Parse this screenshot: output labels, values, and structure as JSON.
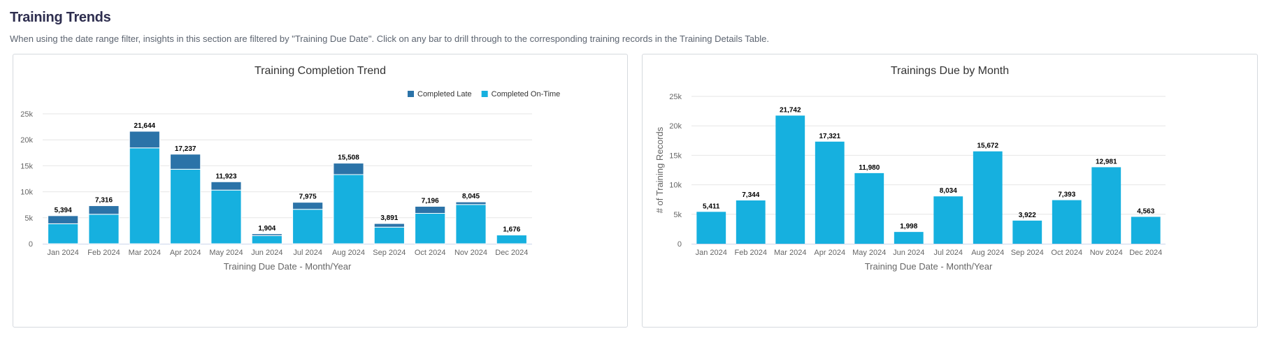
{
  "section": {
    "title": "Training Trends",
    "description": "When using the date range filter, insights in this section are filtered by \"Training Due Date\". Click on any bar to drill through to the corresponding training records in the Training Details Table."
  },
  "colors": {
    "completed_late": "#2b73a8",
    "completed_on_time": "#16b0df",
    "trainings_due": "#16b0df"
  },
  "chart_data": [
    {
      "type": "bar",
      "stacked": true,
      "title": "Training Completion Trend",
      "xlabel": "Training Due Date - Month/Year",
      "ylabel": "",
      "ylim": [
        0,
        25000
      ],
      "yticks": [
        0,
        5000,
        10000,
        15000,
        20000,
        25000
      ],
      "ytick_labels": [
        "0",
        "5k",
        "10k",
        "15k",
        "20k",
        "25k"
      ],
      "grid": true,
      "legend_position": "top-right",
      "categories": [
        "Jan 2024",
        "Feb 2024",
        "Mar 2024",
        "Apr 2024",
        "May 2024",
        "Jun 2024",
        "Jul 2024",
        "Aug 2024",
        "Sep 2024",
        "Oct 2024",
        "Nov 2024",
        "Dec 2024"
      ],
      "series": [
        {
          "name": "Completed Late",
          "color": "#2b73a8",
          "values": [
            1550,
            1650,
            3200,
            2900,
            1600,
            350,
            1350,
            2200,
            700,
            1350,
            500,
            0
          ]
        },
        {
          "name": "Completed On-Time",
          "color": "#16b0df",
          "values": [
            3844,
            5666,
            18444,
            14337,
            10323,
            1554,
            6625,
            13308,
            3191,
            5846,
            7545,
            1676
          ]
        }
      ],
      "totals": [
        5394,
        7316,
        21644,
        17237,
        11923,
        1904,
        7975,
        15508,
        3891,
        7196,
        8045,
        1676
      ],
      "total_labels": [
        "5,394",
        "7,316",
        "21,644",
        "17,237",
        "11,923",
        "1,904",
        "7,975",
        "15,508",
        "3,891",
        "7,196",
        "8,045",
        "1,676"
      ]
    },
    {
      "type": "bar",
      "title": "Trainings Due by Month",
      "xlabel": "Training Due Date - Month/Year",
      "ylabel": "# of Training Records",
      "ylim": [
        0,
        25000
      ],
      "yticks": [
        0,
        5000,
        10000,
        15000,
        20000,
        25000
      ],
      "ytick_labels": [
        "0",
        "5k",
        "10k",
        "15k",
        "20k",
        "25k"
      ],
      "grid": true,
      "categories": [
        "Jan 2024",
        "Feb 2024",
        "Mar 2024",
        "Apr 2024",
        "May 2024",
        "Jun 2024",
        "Jul 2024",
        "Aug 2024",
        "Sep 2024",
        "Oct 2024",
        "Nov 2024",
        "Dec 2024"
      ],
      "values": [
        5411,
        7344,
        21742,
        17321,
        11980,
        1998,
        8034,
        15672,
        3922,
        7393,
        12981,
        4563
      ],
      "value_labels": [
        "5,411",
        "7,344",
        "21,742",
        "17,321",
        "11,980",
        "1,998",
        "8,034",
        "15,672",
        "3,922",
        "7,393",
        "12,981",
        "4,563"
      ]
    }
  ]
}
